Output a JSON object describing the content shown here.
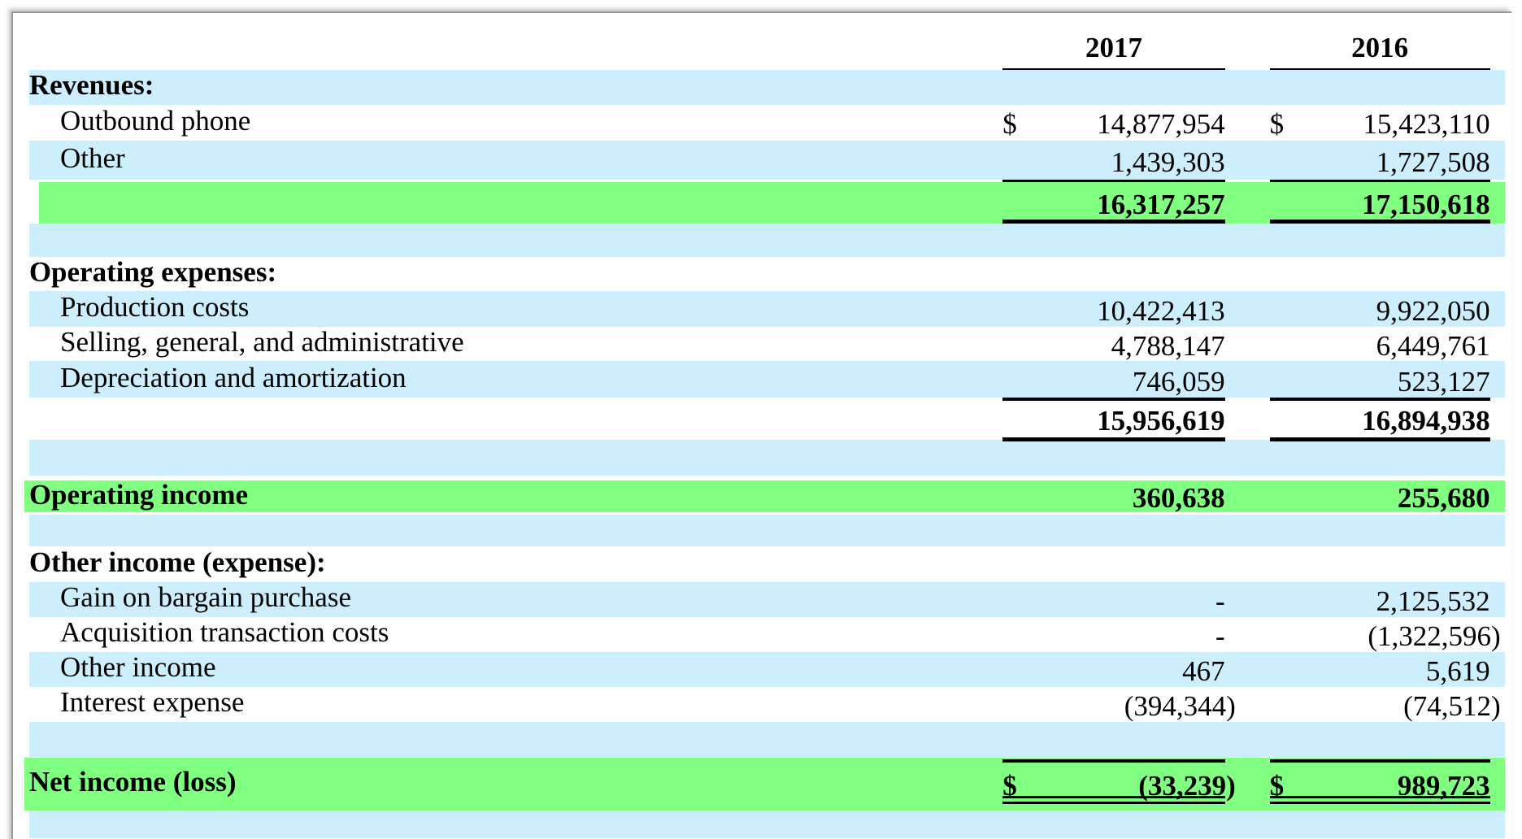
{
  "header": {
    "years": [
      "2017",
      "2016"
    ]
  },
  "rows": [
    {
      "label": "Revenues:"
    },
    {
      "label": "Outbound phone",
      "cells": [
        {
          "currency": "$",
          "amount": "14,877,954"
        },
        {
          "currency": "$",
          "amount": "15,423,110"
        }
      ]
    },
    {
      "label": "Other",
      "cells": [
        {
          "amount": "1,439,303"
        },
        {
          "amount": "1,727,508"
        }
      ]
    },
    {
      "cells": [
        {
          "amount": "16,317,257"
        },
        {
          "amount": "17,150,618"
        }
      ]
    },
    {
      "label": "Operating expenses:"
    },
    {
      "label": "Production costs",
      "cells": [
        {
          "amount": "10,422,413"
        },
        {
          "amount": "9,922,050"
        }
      ]
    },
    {
      "label": "Selling, general, and administrative",
      "cells": [
        {
          "amount": "4,788,147"
        },
        {
          "amount": "6,449,761"
        }
      ]
    },
    {
      "label": "Depreciation and amortization",
      "cells": [
        {
          "amount": "746,059"
        },
        {
          "amount": "523,127"
        }
      ]
    },
    {
      "cells": [
        {
          "amount": "15,956,619"
        },
        {
          "amount": "16,894,938"
        }
      ]
    },
    {
      "label": "Operating income",
      "cells": [
        {
          "amount": "360,638"
        },
        {
          "amount": "255,680"
        }
      ]
    },
    {
      "label": "Other income (expense):"
    },
    {
      "label": "Gain on bargain purchase",
      "cells": [
        {
          "amount": "-"
        },
        {
          "amount": "2,125,532"
        }
      ]
    },
    {
      "label": "Acquisition transaction costs",
      "cells": [
        {
          "amount": "-"
        },
        {
          "amount": "(1,322,596)"
        }
      ]
    },
    {
      "label": "Other income",
      "cells": [
        {
          "amount": "467"
        },
        {
          "amount": "5,619"
        }
      ]
    },
    {
      "label": "Interest expense",
      "cells": [
        {
          "amount": "(394,344)"
        },
        {
          "amount": "(74,512)"
        }
      ]
    },
    {
      "label": "Net income (loss)",
      "cells": [
        {
          "currency": "$",
          "amount": "(33,239)"
        },
        {
          "currency": "$",
          "amount": "989,723"
        }
      ]
    }
  ]
}
